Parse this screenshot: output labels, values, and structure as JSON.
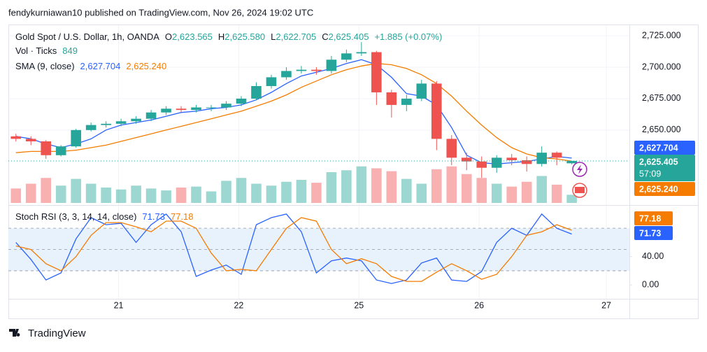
{
  "header": {
    "text": "fendykurniawan10 published on TradingView.com, Nov 26, 2024 19:02 UTC"
  },
  "footer": {
    "brand": "TradingView"
  },
  "chart_data": [
    {
      "type": "candlestick",
      "title": "Gold Spot / U.S. Dollar, 1h, OANDA",
      "legend": [
        {
          "key": "O",
          "value": "2,623.565"
        },
        {
          "key": "H",
          "value": "2,625.580"
        },
        {
          "key": "L",
          "value": "2,622.705"
        },
        {
          "key": "C",
          "value": "2,625.405"
        }
      ],
      "change": "+1.885 (+0.07%)",
      "x": [
        1.5,
        4.5,
        7.5,
        10.5,
        13.5,
        16.5,
        19.5,
        22.5,
        25.5,
        28.5,
        31.5,
        34.5,
        37.5,
        40.5,
        43.5,
        46.5,
        49.5,
        52.5,
        55.5,
        58.5,
        61.5,
        64.5,
        67.5,
        70.5,
        73.5,
        76.5,
        79.5,
        82.5,
        85.5,
        88.5,
        91.5,
        94.5,
        97.5,
        100.5,
        103.5,
        106.5,
        109.5,
        112.5
      ],
      "open": [
        2645,
        2643,
        2641,
        2630,
        2637,
        2650,
        2654,
        2655,
        2657,
        2659,
        2664,
        2667,
        2666,
        2668,
        2668,
        2671,
        2675,
        2685,
        2692,
        2697,
        2698,
        2697,
        2706,
        2711,
        2712,
        2680,
        2670,
        2675,
        2687,
        2643,
        2628,
        2625,
        2620,
        2628,
        2626,
        2623,
        2632,
        2623.565
      ],
      "high": [
        2647,
        2645,
        2642,
        2638,
        2651,
        2656,
        2657,
        2659,
        2661,
        2666,
        2669,
        2669,
        2670,
        2670,
        2673,
        2677,
        2688,
        2694,
        2700,
        2701,
        2700,
        2709,
        2714,
        2720,
        2713,
        2682,
        2678,
        2690,
        2689,
        2646,
        2632,
        2629,
        2630,
        2631,
        2629,
        2637,
        2633,
        2625.58
      ],
      "low": [
        2641,
        2638,
        2627,
        2629,
        2636,
        2649,
        2652,
        2653,
        2655,
        2657,
        2662,
        2664,
        2664,
        2665,
        2666,
        2669,
        2674,
        2683,
        2690,
        2695,
        2694,
        2695,
        2704,
        2709,
        2670,
        2660,
        2665,
        2673,
        2634,
        2622,
        2618,
        2612,
        2616,
        2622,
        2617,
        2621,
        2622,
        2622.705
      ],
      "close": [
        2643,
        2641,
        2630,
        2637,
        2650,
        2654,
        2655,
        2657,
        2659,
        2664,
        2667,
        2666,
        2668,
        2668,
        2671,
        2675,
        2685,
        2692,
        2697,
        2698,
        2697,
        2706,
        2711,
        2712,
        2680,
        2670,
        2675,
        2687,
        2643,
        2628,
        2625,
        2620,
        2628,
        2626,
        2623,
        2632,
        2628,
        2625.405
      ],
      "last_label": "2,625.405",
      "countdown": "57:09",
      "up_color": "#26a69a",
      "down_color": "#ef5350",
      "volume": {
        "name": "Vol · Ticks",
        "values": [
          1500,
          2000,
          2600,
          1800,
          2500,
          2000,
          1600,
          1400,
          1800,
          1500,
          1300,
          1600,
          1700,
          1200,
          2300,
          2600,
          2000,
          1800,
          2200,
          2400,
          2100,
          3200,
          3400,
          3800,
          3600,
          3300,
          2500,
          2000,
          3500,
          3800,
          3000,
          2600,
          2000,
          1700,
          2200,
          2800,
          1900,
          849
        ],
        "ylim": [
          0,
          8000
        ]
      },
      "indicator": "SMA (9, close)",
      "series": [
        {
          "color": "#2962ff",
          "label": "2,627.704",
          "values": [
            2645,
            2643,
            2639,
            2636,
            2639,
            2643,
            2650,
            2654,
            2656,
            2658,
            2661,
            2664,
            2665,
            2667,
            2668,
            2670,
            2674,
            2680,
            2687,
            2693,
            2696,
            2699,
            2703,
            2706,
            2702,
            2692,
            2679,
            2677,
            2670,
            2652,
            2630,
            2624,
            2623,
            2624,
            2625,
            2627,
            2629,
            2627.704
          ]
        },
        {
          "color": "#f57c00",
          "label": "2,625.240",
          "values": [
            2632,
            2633,
            2633,
            2633,
            2634,
            2636,
            2638,
            2641,
            2644,
            2647,
            2650,
            2653,
            2656,
            2659,
            2662,
            2665,
            2669,
            2673,
            2678,
            2684,
            2689,
            2694,
            2698,
            2701,
            2703,
            2702,
            2699,
            2694,
            2687,
            2677,
            2665,
            2654,
            2644,
            2636,
            2631,
            2628,
            2627,
            2625.24
          ]
        }
      ],
      "xlim": [
        0,
        124
      ],
      "xticks": [
        {
          "value": 22,
          "label": "21"
        },
        {
          "value": 46,
          "label": "22"
        },
        {
          "value": 70,
          "label": "25"
        },
        {
          "value": 94,
          "label": "26"
        },
        {
          "value": 119.4,
          "label": "27"
        }
      ],
      "ylim": [
        2592,
        2734
      ],
      "yticks": [
        {
          "value": 2650,
          "label": "2,650.000"
        },
        {
          "value": 2675,
          "label": "2,675.000"
        },
        {
          "value": 2700,
          "label": "2,700.000"
        },
        {
          "value": 2725,
          "label": "2,725.000"
        }
      ],
      "grid": true
    },
    {
      "type": "line",
      "title": "Stoch RSI (3, 3, 14, 14, close)",
      "series": [
        {
          "color": "#2962ff",
          "values": [
            60,
            36,
            7,
            17,
            65,
            95,
            85,
            87,
            60,
            85,
            100,
            75,
            12,
            21,
            28,
            15,
            85,
            95,
            100,
            75,
            17,
            34,
            38,
            34,
            7,
            2,
            7,
            31,
            38,
            7,
            5,
            19,
            60,
            80,
            70,
            100,
            80,
            71.73
          ]
        },
        {
          "color": "#f57c00",
          "values": [
            55,
            50,
            30,
            20,
            40,
            70,
            88,
            88,
            82,
            75,
            90,
            90,
            80,
            45,
            20,
            22,
            20,
            50,
            80,
            95,
            90,
            50,
            30,
            37,
            30,
            12,
            5,
            5,
            18,
            30,
            20,
            8,
            15,
            40,
            70,
            75,
            85,
            77.18
          ]
        }
      ],
      "ylim": [
        -17.6,
        107.8
      ],
      "yticks": [
        {
          "value": 0,
          "label": "0.00"
        },
        {
          "value": 40,
          "label": "40.00"
        }
      ],
      "levels": [
        80,
        50,
        20
      ],
      "band_color": "#e8f2fc"
    }
  ]
}
